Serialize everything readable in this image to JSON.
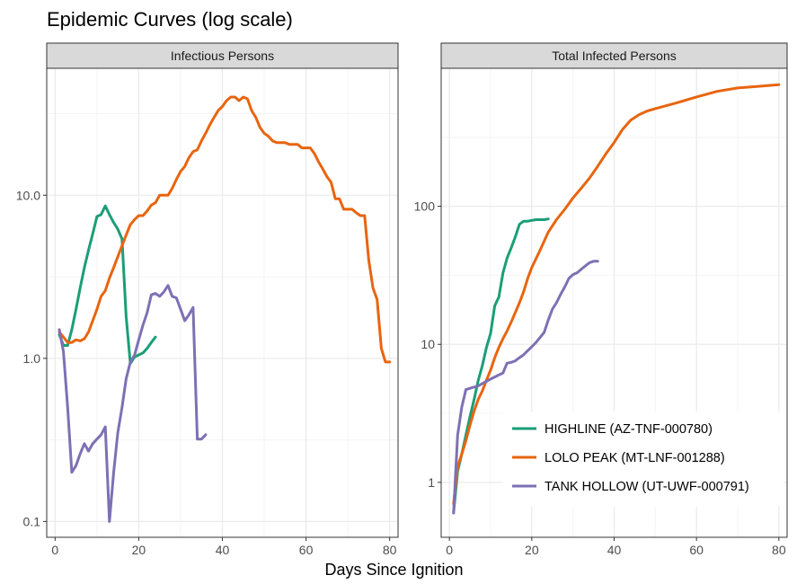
{
  "title": "Epidemic Curves (log scale)",
  "xlabel": "Days Since Ignition",
  "colors": {
    "highline": "#1B9E77",
    "lolo": "#E8650F",
    "tank": "#7E70B4",
    "strip_bg": "#D9D9D9",
    "grid_major": "#EBEBEB",
    "grid_minor": "#F4F4F4",
    "panel_border": "#333333"
  },
  "legend": {
    "position": "bottom-right inside right panel",
    "entries": [
      "HIGHLINE (AZ-TNF-000780)",
      "LOLO PEAK (MT-LNF-001288)",
      "TANK HOLLOW (UT-UWF-000791)"
    ]
  },
  "chart_data": [
    {
      "type": "line",
      "panel_title": "Infectious Persons",
      "y_scale": "log",
      "xlim": [
        -2,
        82
      ],
      "ylim": [
        0.08,
        60
      ],
      "x_ticks": [
        0,
        20,
        40,
        60,
        80
      ],
      "x_tick_labels": [
        "0",
        "20",
        "40",
        "60",
        "80"
      ],
      "y_ticks": [
        0.1,
        1,
        10
      ],
      "y_tick_labels": [
        "0.1",
        "1.0",
        "10.0"
      ],
      "grid": true,
      "series": [
        {
          "name": "HIGHLINE (AZ-TNF-000780)",
          "color_key": "highline",
          "x": [
            1,
            2,
            3,
            4,
            5,
            6,
            7,
            8,
            9,
            10,
            11,
            12,
            13,
            14,
            15,
            16,
            17,
            18,
            19,
            20,
            21,
            22,
            23,
            24
          ],
          "y": [
            1.4,
            1.2,
            1.2,
            1.5,
            2.0,
            2.7,
            3.6,
            4.6,
            5.8,
            7.4,
            7.6,
            8.6,
            7.6,
            6.8,
            6.2,
            5.4,
            1.8,
            0.93,
            1.02,
            1.05,
            1.08,
            1.15,
            1.25,
            1.35
          ]
        },
        {
          "name": "LOLO PEAK (MT-LNF-001288)",
          "color_key": "lolo",
          "x": [
            1,
            2,
            3,
            4,
            5,
            6,
            7,
            8,
            9,
            10,
            11,
            12,
            13,
            14,
            15,
            16,
            17,
            18,
            19,
            20,
            21,
            22,
            23,
            24,
            25,
            26,
            27,
            28,
            29,
            30,
            31,
            32,
            33,
            34,
            35,
            36,
            37,
            38,
            39,
            40,
            41,
            42,
            43,
            44,
            45,
            46,
            47,
            48,
            49,
            50,
            51,
            52,
            53,
            54,
            55,
            56,
            57,
            58,
            59,
            60,
            61,
            62,
            63,
            64,
            65,
            66,
            67,
            68,
            69,
            70,
            71,
            72,
            73,
            74,
            75,
            76,
            77,
            78,
            79,
            80
          ],
          "y": [
            1.45,
            1.35,
            1.25,
            1.25,
            1.3,
            1.28,
            1.32,
            1.45,
            1.7,
            2.0,
            2.4,
            2.6,
            3.1,
            3.6,
            4.2,
            4.9,
            5.7,
            6.6,
            7.1,
            7.5,
            7.5,
            8.0,
            8.7,
            9.0,
            10.0,
            10.0,
            10.0,
            11.0,
            12.5,
            14.0,
            15.0,
            17.0,
            18.5,
            19.0,
            21.5,
            24.0,
            27.0,
            30.0,
            33.0,
            35.0,
            38.0,
            40.0,
            40.0,
            38.0,
            40.0,
            39.0,
            33.0,
            30.0,
            26.0,
            24.0,
            23.0,
            21.5,
            21.0,
            21.0,
            21.0,
            20.5,
            20.5,
            20.5,
            19.5,
            19.5,
            19.5,
            18.0,
            16.0,
            14.5,
            13.0,
            12.0,
            9.5,
            9.5,
            8.2,
            8.2,
            8.2,
            7.8,
            7.5,
            7.5,
            4.0,
            2.7,
            2.3,
            1.15,
            0.95,
            0.95
          ]
        },
        {
          "name": "TANK HOLLOW (UT-UWF-000791)",
          "color_key": "tank",
          "x": [
            1,
            2,
            3,
            4,
            5,
            6,
            7,
            8,
            9,
            10,
            11,
            12,
            13,
            14,
            15,
            16,
            17,
            18,
            19,
            20,
            21,
            22,
            23,
            24,
            25,
            26,
            27,
            28,
            29,
            30,
            31,
            32,
            33,
            34,
            35,
            36
          ],
          "y": [
            1.5,
            1.1,
            0.5,
            0.2,
            0.22,
            0.26,
            0.3,
            0.27,
            0.3,
            0.32,
            0.34,
            0.38,
            0.1,
            0.2,
            0.35,
            0.5,
            0.75,
            0.95,
            1.05,
            1.3,
            1.6,
            1.9,
            2.45,
            2.5,
            2.4,
            2.55,
            2.8,
            2.4,
            2.35,
            2.0,
            1.7,
            1.85,
            2.05,
            0.32,
            0.32,
            0.34
          ]
        }
      ]
    },
    {
      "type": "line",
      "panel_title": "Total Infected Persons",
      "y_scale": "log",
      "xlim": [
        -2,
        82
      ],
      "ylim": [
        0.4,
        1000
      ],
      "x_ticks": [
        0,
        20,
        40,
        60,
        80
      ],
      "x_tick_labels": [
        "0",
        "20",
        "40",
        "60",
        "80"
      ],
      "y_ticks": [
        1,
        10,
        100
      ],
      "y_tick_labels": [
        "1",
        "10",
        "100"
      ],
      "grid": true,
      "series": [
        {
          "name": "HIGHLINE (AZ-TNF-000780)",
          "color_key": "highline",
          "x": [
            1,
            2,
            3,
            4,
            5,
            6,
            7,
            8,
            9,
            10,
            11,
            12,
            13,
            14,
            15,
            16,
            17,
            18,
            19,
            20,
            21,
            22,
            23,
            24
          ],
          "y": [
            0.6,
            1.2,
            1.6,
            2.2,
            3.0,
            4.0,
            5.5,
            7.0,
            9.5,
            12.0,
            19.0,
            22.0,
            33.0,
            42.0,
            50.0,
            60.0,
            74.0,
            78.0,
            78.0,
            79.0,
            80.0,
            80.0,
            80.0,
            81.0
          ]
        },
        {
          "name": "LOLO PEAK (MT-LNF-001288)",
          "color_key": "lolo",
          "x": [
            1,
            2,
            3,
            4,
            5,
            6,
            7,
            8,
            9,
            10,
            11,
            12,
            13,
            14,
            15,
            16,
            17,
            18,
            19,
            20,
            22,
            24,
            26,
            28,
            30,
            32,
            34,
            36,
            38,
            40,
            42,
            44,
            46,
            48,
            50,
            52,
            55,
            60,
            65,
            70,
            75,
            80
          ],
          "y": [
            0.7,
            1.3,
            1.6,
            2.0,
            2.6,
            3.3,
            4.0,
            4.6,
            5.5,
            6.5,
            8.0,
            9.5,
            11.0,
            12.5,
            14.5,
            17.0,
            20.0,
            24.0,
            30.0,
            36.0,
            48.0,
            65.0,
            80.0,
            95.0,
            115.0,
            135.0,
            160.0,
            195.0,
            240.0,
            290.0,
            360.0,
            420.0,
            460.0,
            490.0,
            510.0,
            530.0,
            560.0,
            620.0,
            680.0,
            720.0,
            740.0,
            760.0
          ]
        },
        {
          "name": "TANK HOLLOW (UT-UWF-000791)",
          "color_key": "tank",
          "x": [
            1,
            2,
            3,
            4,
            5,
            6,
            7,
            8,
            9,
            10,
            11,
            12,
            13,
            14,
            15,
            16,
            17,
            18,
            19,
            20,
            21,
            22,
            23,
            24,
            25,
            26,
            27,
            28,
            29,
            30,
            31,
            32,
            33,
            34,
            35,
            36
          ],
          "y": [
            0.6,
            2.2,
            3.5,
            4.7,
            4.8,
            4.9,
            5.0,
            5.2,
            5.4,
            5.6,
            5.8,
            6.0,
            6.2,
            7.3,
            7.4,
            7.6,
            8.0,
            8.4,
            9.0,
            9.6,
            10.3,
            11.2,
            12.2,
            15.0,
            18.0,
            20.0,
            23.0,
            26.0,
            30.0,
            32.0,
            33.0,
            35.0,
            37.0,
            39.0,
            40.0,
            40.0
          ]
        }
      ]
    }
  ]
}
